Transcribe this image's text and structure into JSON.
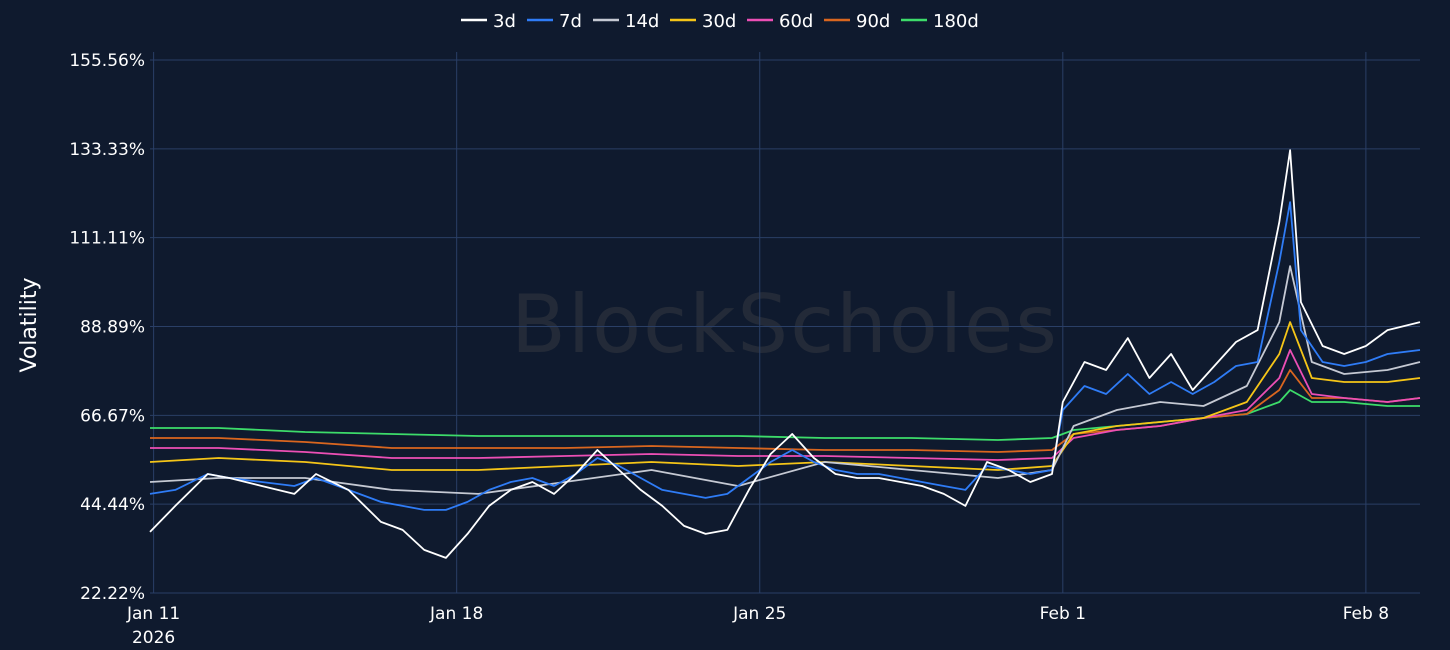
{
  "chart_data": {
    "type": "line",
    "title": "",
    "ylabel": "Volatility",
    "xlabel": "",
    "watermark": "BlockScholes",
    "legend_position": "top-center",
    "grid": true,
    "x_range": [
      "2026-01-10T22:00",
      "2026-02-09T06:00"
    ],
    "ylim": [
      22.22,
      155.56
    ],
    "y_ticks": [
      "22.22%",
      "44.44%",
      "66.67%",
      "88.89%",
      "111.11%",
      "133.33%",
      "155.56%"
    ],
    "y_tick_values": [
      22.22,
      44.44,
      66.67,
      88.89,
      111.11,
      133.33,
      155.56
    ],
    "x_ticks": [
      {
        "date": "2026-01-11",
        "label": "Jan 11",
        "sublabel": "2026"
      },
      {
        "date": "2026-01-18",
        "label": "Jan 18",
        "sublabel": ""
      },
      {
        "date": "2026-01-25",
        "label": "Jan 25",
        "sublabel": ""
      },
      {
        "date": "2026-02-01",
        "label": "Feb 1",
        "sublabel": ""
      },
      {
        "date": "2026-02-08",
        "label": "Feb 8",
        "sublabel": ""
      }
    ],
    "series": [
      {
        "name": "3d",
        "color": "#ffffff",
        "x": [
          "2026-01-10T22:00",
          "2026-01-11T12:00",
          "2026-01-12T06:00",
          "2026-01-12T18:00",
          "2026-01-13T12:00",
          "2026-01-14T06:00",
          "2026-01-14T18:00",
          "2026-01-15T12:00",
          "2026-01-16T06:00",
          "2026-01-16T18:00",
          "2026-01-17T06:00",
          "2026-01-17T18:00",
          "2026-01-18T06:00",
          "2026-01-18T18:00",
          "2026-01-19T06:00",
          "2026-01-19T18:00",
          "2026-01-20T06:00",
          "2026-01-20T18:00",
          "2026-01-21T06:00",
          "2026-01-21T18:00",
          "2026-01-22T06:00",
          "2026-01-22T18:00",
          "2026-01-23T06:00",
          "2026-01-23T18:00",
          "2026-01-24T06:00",
          "2026-01-24T18:00",
          "2026-01-25T06:00",
          "2026-01-25T18:00",
          "2026-01-26T06:00",
          "2026-01-26T18:00",
          "2026-01-27T06:00",
          "2026-01-27T18:00",
          "2026-01-28T06:00",
          "2026-01-28T18:00",
          "2026-01-29T06:00",
          "2026-01-29T18:00",
          "2026-01-30T06:00",
          "2026-01-30T18:00",
          "2026-01-31T06:00",
          "2026-01-31T18:00",
          "2026-02-01T00:00",
          "2026-02-01T12:00",
          "2026-02-02T00:00",
          "2026-02-02T12:00",
          "2026-02-03T00:00",
          "2026-02-03T12:00",
          "2026-02-04T00:00",
          "2026-02-04T12:00",
          "2026-02-05T00:00",
          "2026-02-05T12:00",
          "2026-02-06T00:00",
          "2026-02-06T06:00",
          "2026-02-06T12:00",
          "2026-02-07T00:00",
          "2026-02-07T12:00",
          "2026-02-08T00:00",
          "2026-02-08T12:00",
          "2026-02-09T06:00"
        ],
        "values": [
          37.5,
          44,
          52,
          51,
          49,
          47,
          52,
          48,
          40,
          38,
          33,
          31,
          37,
          44,
          48,
          50,
          47,
          52,
          58,
          53,
          48,
          44,
          39,
          37,
          38,
          48,
          57,
          62,
          56,
          52,
          51,
          51,
          50,
          49,
          47,
          44,
          55,
          53,
          50,
          52,
          70,
          80,
          78,
          86,
          76,
          82,
          73,
          79,
          85,
          88,
          115,
          133,
          95,
          84,
          82,
          84,
          88,
          90
        ]
      },
      {
        "name": "7d",
        "color": "#2f7cf6",
        "x": [
          "2026-01-10T22:00",
          "2026-01-11T12:00",
          "2026-01-12T06:00",
          "2026-01-12T18:00",
          "2026-01-13T12:00",
          "2026-01-14T06:00",
          "2026-01-14T18:00",
          "2026-01-15T12:00",
          "2026-01-16T06:00",
          "2026-01-16T18:00",
          "2026-01-17T06:00",
          "2026-01-17T18:00",
          "2026-01-18T06:00",
          "2026-01-18T18:00",
          "2026-01-19T06:00",
          "2026-01-19T18:00",
          "2026-01-20T06:00",
          "2026-01-20T18:00",
          "2026-01-21T06:00",
          "2026-01-21T18:00",
          "2026-01-22T06:00",
          "2026-01-22T18:00",
          "2026-01-23T06:00",
          "2026-01-23T18:00",
          "2026-01-24T06:00",
          "2026-01-24T18:00",
          "2026-01-25T06:00",
          "2026-01-25T18:00",
          "2026-01-26T06:00",
          "2026-01-26T18:00",
          "2026-01-27T06:00",
          "2026-01-27T18:00",
          "2026-01-28T06:00",
          "2026-01-28T18:00",
          "2026-01-29T06:00",
          "2026-01-29T18:00",
          "2026-01-30T06:00",
          "2026-01-30T18:00",
          "2026-01-31T06:00",
          "2026-01-31T18:00",
          "2026-02-01T00:00",
          "2026-02-01T12:00",
          "2026-02-02T00:00",
          "2026-02-02T12:00",
          "2026-02-03T00:00",
          "2026-02-03T12:00",
          "2026-02-04T00:00",
          "2026-02-04T12:00",
          "2026-02-05T00:00",
          "2026-02-05T12:00",
          "2026-02-06T00:00",
          "2026-02-06T06:00",
          "2026-02-06T12:00",
          "2026-02-07T00:00",
          "2026-02-07T12:00",
          "2026-02-08T00:00",
          "2026-02-08T12:00",
          "2026-02-09T06:00"
        ],
        "values": [
          47,
          48,
          52,
          51,
          50,
          49,
          51,
          48,
          45,
          44,
          43,
          43,
          45,
          48,
          50,
          51,
          49,
          52,
          56,
          54,
          51,
          48,
          47,
          46,
          47,
          51,
          55,
          58,
          55,
          53,
          52,
          52,
          51,
          50,
          49,
          48,
          54,
          53,
          52,
          53,
          68,
          74,
          72,
          77,
          72,
          75,
          72,
          75,
          79,
          80,
          105,
          120,
          88,
          80,
          79,
          80,
          82,
          83
        ]
      },
      {
        "name": "14d",
        "color": "#c5c9d3",
        "x": [
          "2026-01-10T22:00",
          "2026-01-12T12:00",
          "2026-01-14T12:00",
          "2026-01-16T12:00",
          "2026-01-18T12:00",
          "2026-01-20T12:00",
          "2026-01-22T12:00",
          "2026-01-24T12:00",
          "2026-01-26T12:00",
          "2026-01-28T12:00",
          "2026-01-30T12:00",
          "2026-01-31T18:00",
          "2026-02-01T06:00",
          "2026-02-02T06:00",
          "2026-02-03T06:00",
          "2026-02-04T06:00",
          "2026-02-05T06:00",
          "2026-02-06T00:00",
          "2026-02-06T06:00",
          "2026-02-06T18:00",
          "2026-02-07T12:00",
          "2026-02-08T12:00",
          "2026-02-09T06:00"
        ],
        "values": [
          50,
          51,
          51,
          48,
          47,
          50,
          53,
          49,
          55,
          53,
          51,
          53,
          64,
          68,
          70,
          69,
          74,
          90,
          104,
          80,
          77,
          78,
          80
        ]
      },
      {
        "name": "30d",
        "color": "#f5c518",
        "x": [
          "2026-01-10T22:00",
          "2026-01-12T12:00",
          "2026-01-14T12:00",
          "2026-01-16T12:00",
          "2026-01-18T12:00",
          "2026-01-20T12:00",
          "2026-01-22T12:00",
          "2026-01-24T12:00",
          "2026-01-26T12:00",
          "2026-01-28T12:00",
          "2026-01-30T12:00",
          "2026-01-31T18:00",
          "2026-02-01T06:00",
          "2026-02-02T06:00",
          "2026-02-03T06:00",
          "2026-02-04T06:00",
          "2026-02-05T06:00",
          "2026-02-06T00:00",
          "2026-02-06T06:00",
          "2026-02-06T18:00",
          "2026-02-07T12:00",
          "2026-02-08T12:00",
          "2026-02-09T06:00"
        ],
        "values": [
          55,
          56,
          55,
          53,
          53,
          54,
          55,
          54,
          55,
          54,
          53,
          54,
          62,
          64,
          65,
          66,
          70,
          82,
          90,
          76,
          75,
          75,
          76
        ]
      },
      {
        "name": "60d",
        "color": "#ec4fb5",
        "x": [
          "2026-01-10T22:00",
          "2026-01-12T12:00",
          "2026-01-14T12:00",
          "2026-01-16T12:00",
          "2026-01-18T12:00",
          "2026-01-20T12:00",
          "2026-01-22T12:00",
          "2026-01-24T12:00",
          "2026-01-26T12:00",
          "2026-01-28T12:00",
          "2026-01-30T12:00",
          "2026-01-31T18:00",
          "2026-02-01T06:00",
          "2026-02-02T06:00",
          "2026-02-03T06:00",
          "2026-02-04T06:00",
          "2026-02-05T06:00",
          "2026-02-06T00:00",
          "2026-02-06T06:00",
          "2026-02-06T18:00",
          "2026-02-07T12:00",
          "2026-02-08T12:00",
          "2026-02-09T06:00"
        ],
        "values": [
          58.5,
          58.5,
          57.5,
          56,
          56,
          56.5,
          57,
          56.5,
          56.5,
          56,
          55.5,
          56,
          61,
          63,
          64,
          66,
          68,
          76,
          83,
          72,
          71,
          70,
          71
        ]
      },
      {
        "name": "90d",
        "color": "#d9661f",
        "x": [
          "2026-01-10T22:00",
          "2026-01-12T12:00",
          "2026-01-14T12:00",
          "2026-01-16T12:00",
          "2026-01-18T12:00",
          "2026-01-20T12:00",
          "2026-01-22T12:00",
          "2026-01-24T12:00",
          "2026-01-26T12:00",
          "2026-01-28T12:00",
          "2026-01-30T12:00",
          "2026-01-31T18:00",
          "2026-02-01T06:00",
          "2026-02-02T06:00",
          "2026-02-03T06:00",
          "2026-02-04T06:00",
          "2026-02-05T06:00",
          "2026-02-06T00:00",
          "2026-02-06T06:00",
          "2026-02-06T18:00",
          "2026-02-07T12:00",
          "2026-02-08T12:00",
          "2026-02-09T06:00"
        ],
        "values": [
          61,
          61,
          60,
          58.5,
          58.5,
          58.5,
          59,
          58.5,
          58,
          58,
          57.5,
          58,
          62,
          63,
          64,
          66,
          67,
          73,
          78,
          71,
          71,
          70,
          71
        ]
      },
      {
        "name": "180d",
        "color": "#3ddc6a",
        "x": [
          "2026-01-10T22:00",
          "2026-01-12T12:00",
          "2026-01-14T12:00",
          "2026-01-16T12:00",
          "2026-01-18T12:00",
          "2026-01-20T12:00",
          "2026-01-22T12:00",
          "2026-01-24T12:00",
          "2026-01-26T12:00",
          "2026-01-28T12:00",
          "2026-01-30T12:00",
          "2026-01-31T18:00",
          "2026-02-01T06:00",
          "2026-02-02T06:00",
          "2026-02-03T06:00",
          "2026-02-04T06:00",
          "2026-02-05T06:00",
          "2026-02-06T00:00",
          "2026-02-06T06:00",
          "2026-02-06T18:00",
          "2026-02-07T12:00",
          "2026-02-08T12:00",
          "2026-02-09T06:00"
        ],
        "values": [
          63.5,
          63.5,
          62.5,
          62,
          61.5,
          61.5,
          61.5,
          61.5,
          61,
          61,
          60.5,
          61,
          63,
          64,
          65,
          66,
          67,
          70,
          73,
          70,
          70,
          69,
          69
        ]
      }
    ]
  }
}
